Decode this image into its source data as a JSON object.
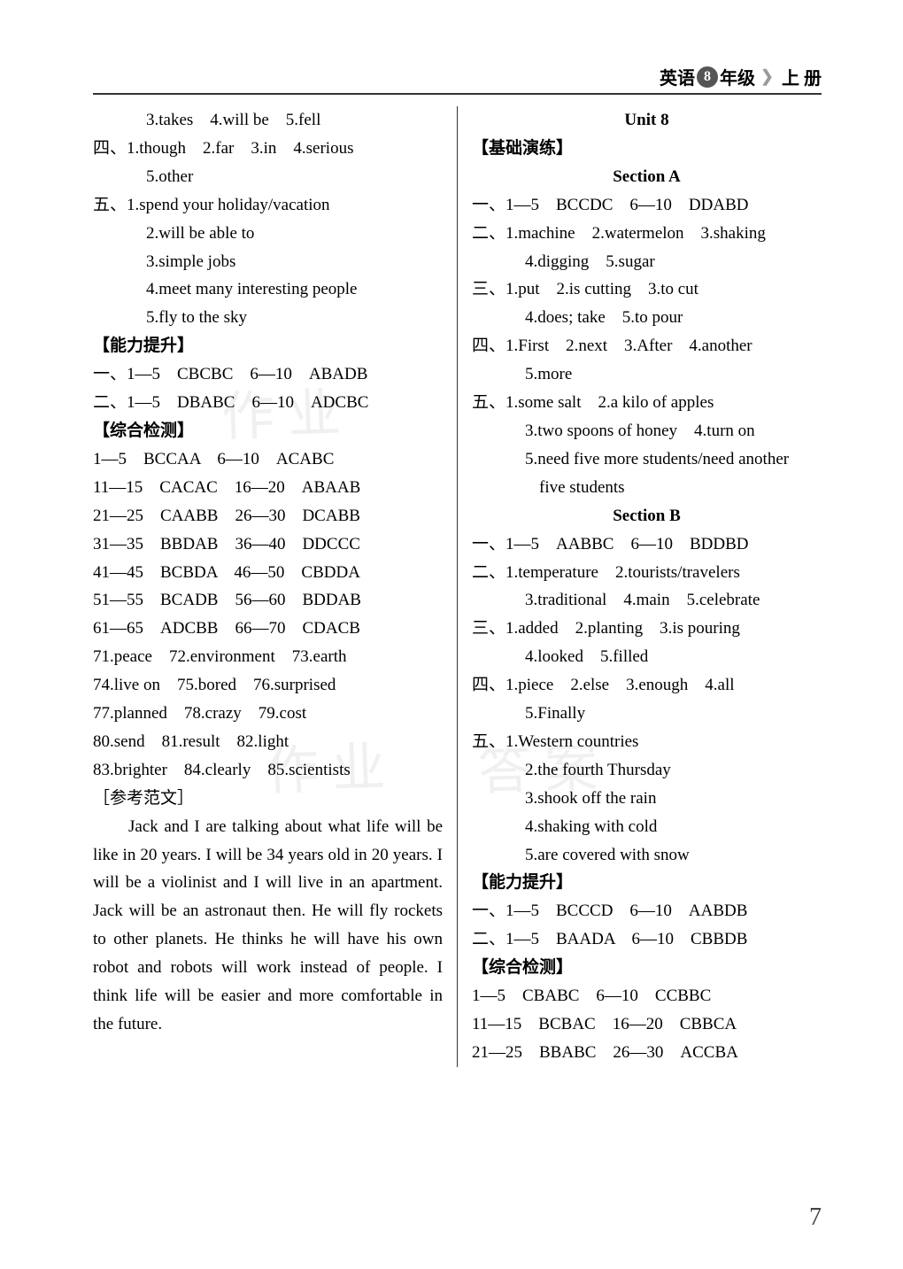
{
  "header": {
    "subject": "英语",
    "grade_badge": "8",
    "grade_suffix": "年级",
    "volume": "上 册"
  },
  "left": {
    "l1": "3.takes　4.will be　5.fell",
    "l2": "四、1.though　2.far　3.in　4.serious",
    "l3": "5.other",
    "l4": "五、1.spend your holiday/vacation",
    "l5": "2.will be able to",
    "l6": "3.simple jobs",
    "l7": "4.meet many interesting people",
    "l8": "5.fly to the sky",
    "l9": "【能力提升】",
    "l10": "一、1—5　CBCBC　6—10　ABADB",
    "l11": "二、1—5　DBABC　6—10　ADCBC",
    "l12": "【综合检测】",
    "l13": "1—5　BCCAA　6—10　ACABC",
    "l14": "11—15　CACAC　16—20　ABAAB",
    "l15": "21—25　CAABB　26—30　DCABB",
    "l16": "31—35　BBDAB　36—40　DDCCC",
    "l17": "41—45　BCBDA　46—50　CBDDA",
    "l18": "51—55　BCADB　56—60　BDDAB",
    "l19": "61—65　ADCBB　66—70　CDACB",
    "l20": "71.peace　72.environment　73.earth",
    "l21": "74.live on　75.bored　76.surprised",
    "l22": "77.planned　78.crazy　79.cost",
    "l23": "80.send　81.result　82.light",
    "l24": "83.brighter　84.clearly　85.scientists",
    "l25": "［参考范文］",
    "essay1": "Jack and I are talking about what life will be like in 20 years. I will be 34 years old in 20 years. I will be a violinist and I will live in an apartment. Jack will be an astronaut then. He will fly rockets to other planets. He thinks he will have his own robot and robots will work instead of people. I think life will be easier and more comfortable in the future."
  },
  "right": {
    "r1": "Unit 8",
    "r2": "【基础演练】",
    "r3": "Section A",
    "r4": "一、1—5　BCCDC　6—10　DDABD",
    "r5": "二、1.machine　2.watermelon　3.shaking",
    "r6": "4.digging　5.sugar",
    "r7": "三、1.put　2.is cutting　3.to cut",
    "r8": "4.does; take　5.to pour",
    "r9": "四、1.First　2.next　3.After　4.another",
    "r10": "5.more",
    "r11": "五、1.some salt　2.a kilo of apples",
    "r12": "3.two spoons of honey　4.turn on",
    "r13": "5.need five more students/need another",
    "r14": "five students",
    "r15": "Section B",
    "r16": "一、1—5　AABBC　6—10　BDDBD",
    "r17": "二、1.temperature　2.tourists/travelers",
    "r18": "3.traditional　4.main　5.celebrate",
    "r19": "三、1.added　2.planting　3.is pouring",
    "r20": "4.looked　5.filled",
    "r21": "四、1.piece　2.else　3.enough　4.all",
    "r22": "5.Finally",
    "r23": "五、1.Western countries",
    "r24": "2.the fourth Thursday",
    "r25": "3.shook off the rain",
    "r26": "4.shaking with cold",
    "r27": "5.are covered with snow",
    "r28": "【能力提升】",
    "r29": "一、1—5　BCCCD　6—10　AABDB",
    "r30": "二、1—5　BAADA　6—10　CBBDB",
    "r31": "【综合检测】",
    "r32": "1—5　CBABC　6—10　CCBBC",
    "r33": "11—15　BCBAC　16—20　CBBCA",
    "r34": "21—25　BBABC　26—30　ACCBA"
  },
  "page_num": "7"
}
